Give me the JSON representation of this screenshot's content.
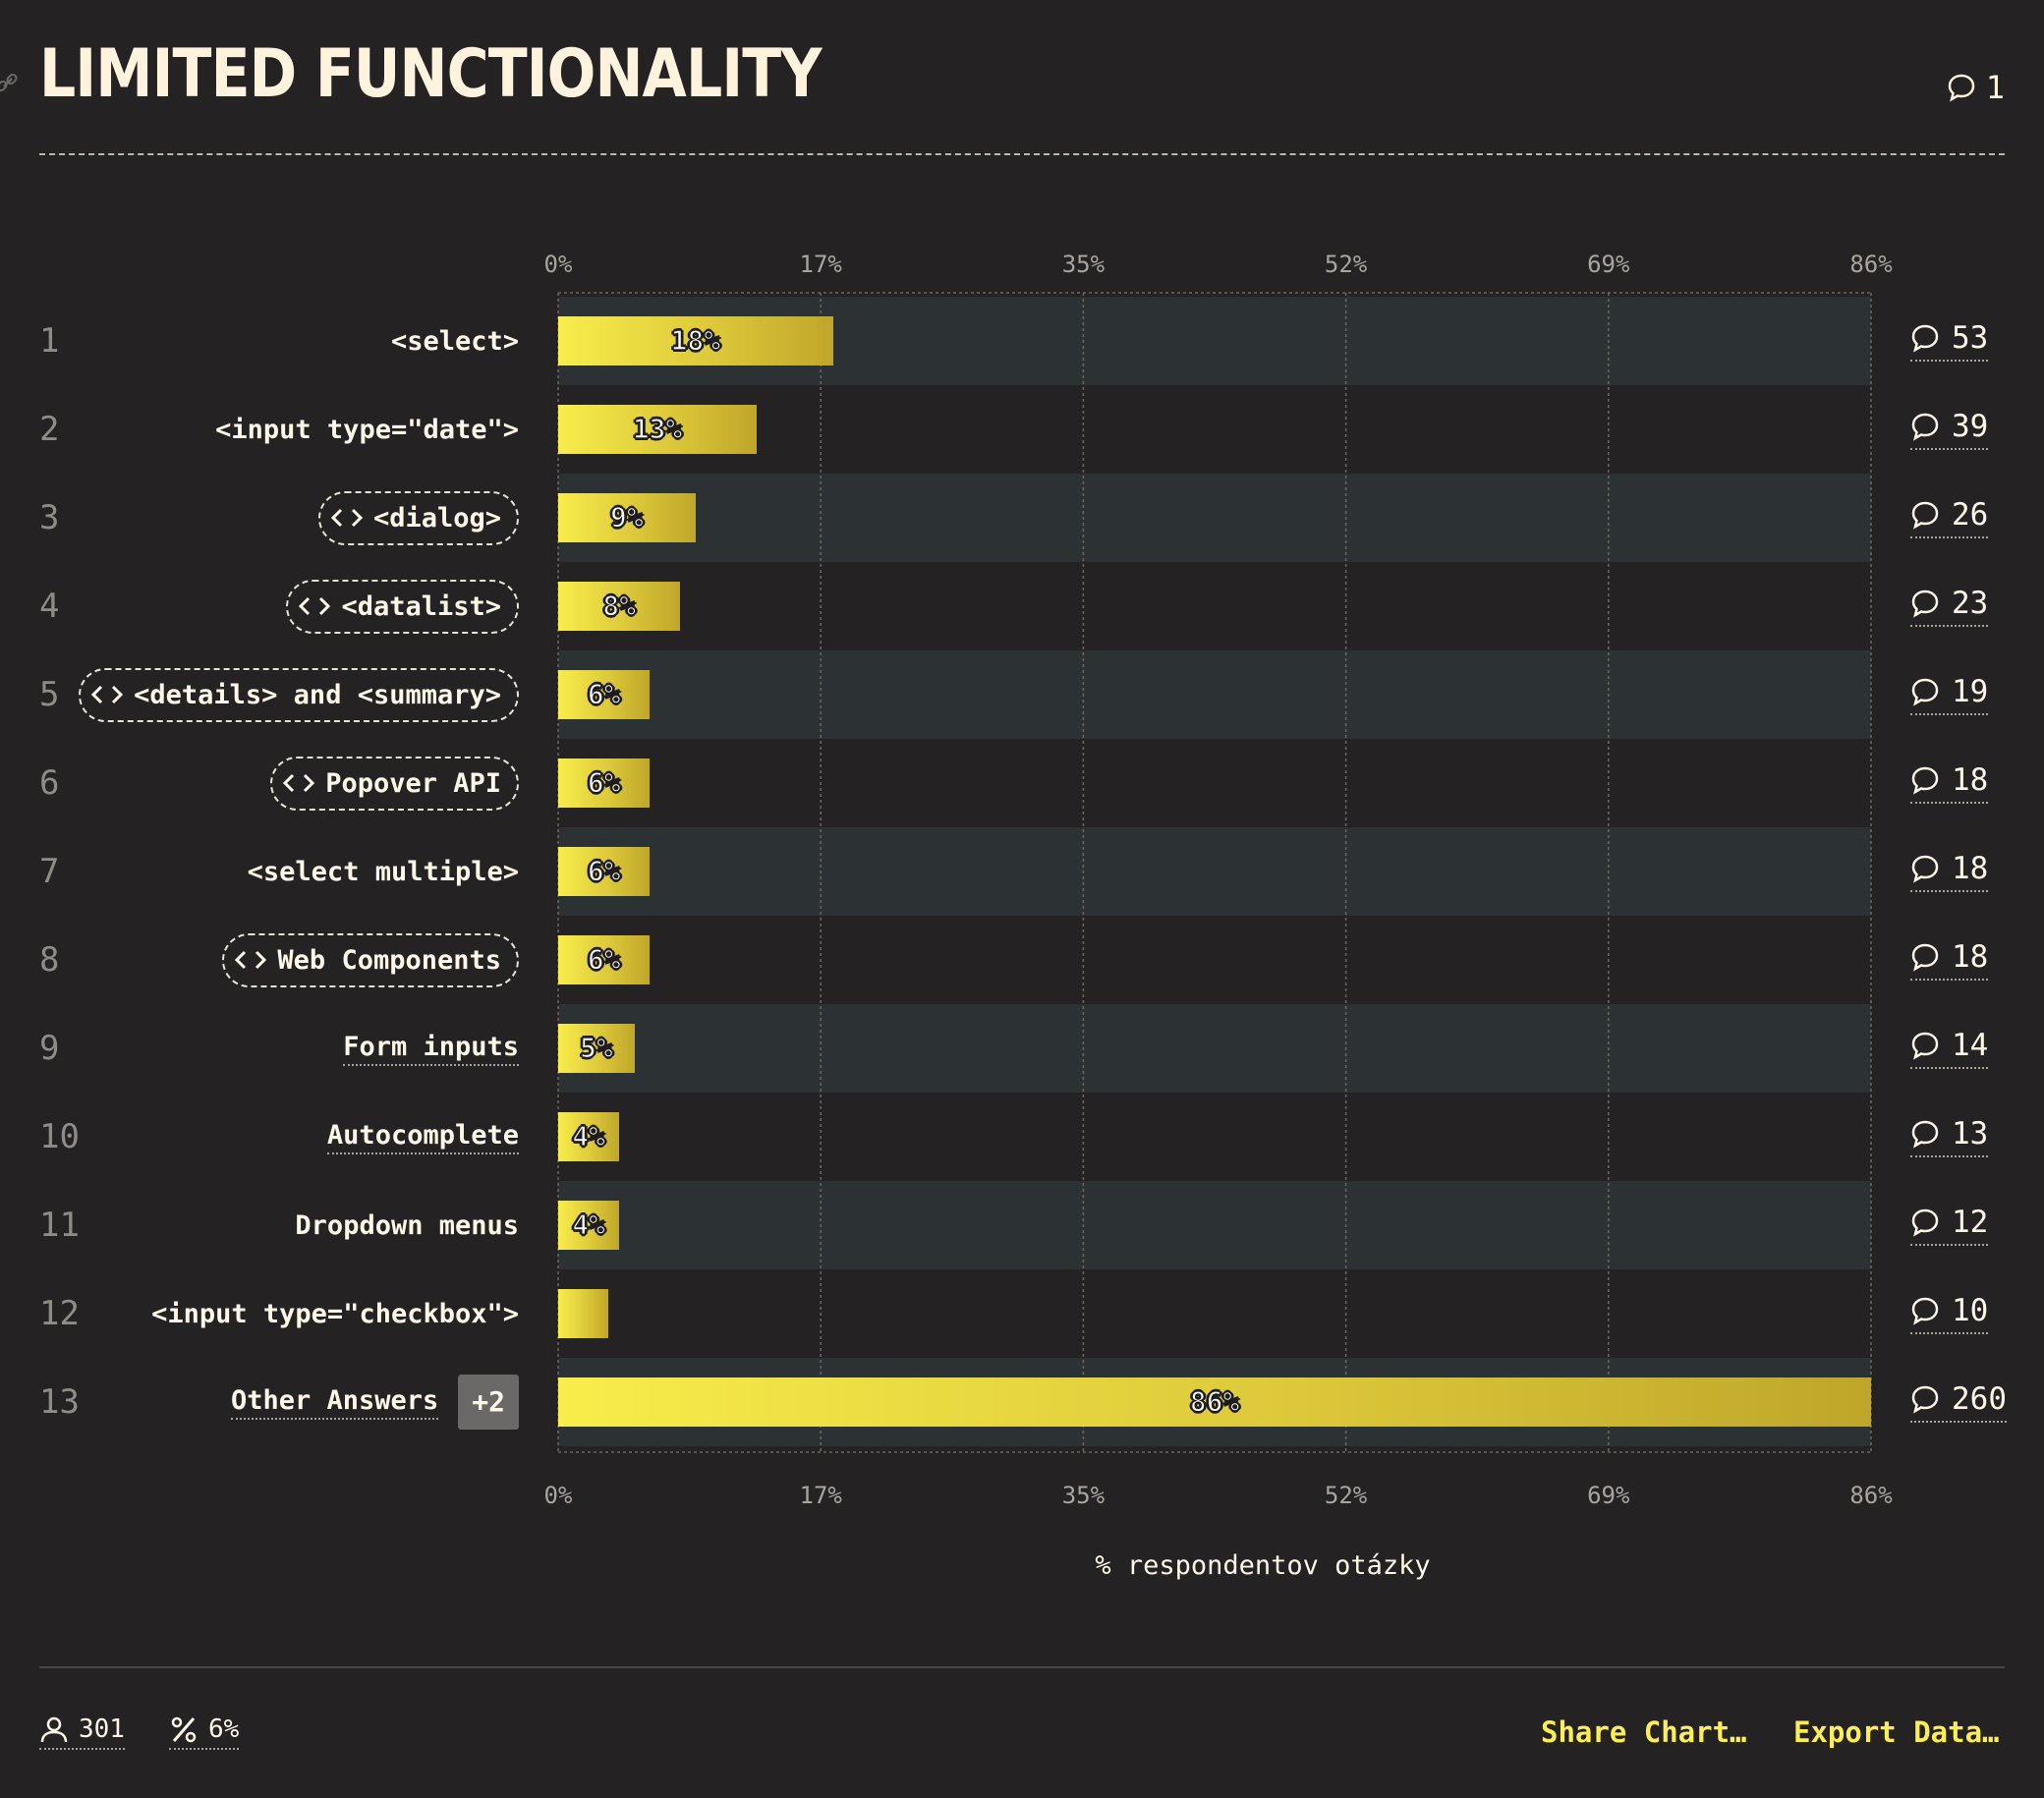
{
  "header": {
    "title": "LIMITED FUNCTIONALITY",
    "comment_count": "1"
  },
  "chart_data": {
    "type": "bar",
    "orientation": "horizontal",
    "title": "LIMITED FUNCTIONALITY",
    "xlabel": "% respondentov otázky",
    "xlim": [
      0,
      86
    ],
    "ticks": [
      "0%",
      "17%",
      "35%",
      "52%",
      "69%",
      "86%"
    ],
    "tick_values": [
      0,
      17.2,
      34.4,
      51.6,
      68.8,
      86
    ],
    "grid": true,
    "rows": [
      {
        "rank": "1",
        "label": "<select>",
        "style": "plain",
        "value": 18,
        "value_label": "18%",
        "comments": "53"
      },
      {
        "rank": "2",
        "label": "<input type=\"date\">",
        "style": "plain",
        "value": 13,
        "value_label": "13%",
        "comments": "39"
      },
      {
        "rank": "3",
        "label": "<dialog>",
        "style": "pill",
        "value": 9,
        "value_label": "9%",
        "comments": "26"
      },
      {
        "rank": "4",
        "label": "<datalist>",
        "style": "pill",
        "value": 8,
        "value_label": "8%",
        "comments": "23"
      },
      {
        "rank": "5",
        "label": "<details> and <summary>",
        "style": "pill",
        "value": 6,
        "value_label": "6%",
        "comments": "19"
      },
      {
        "rank": "6",
        "label": "Popover API",
        "style": "pill",
        "value": 6,
        "value_label": "6%",
        "comments": "18"
      },
      {
        "rank": "7",
        "label": "<select multiple>",
        "style": "plain",
        "value": 6,
        "value_label": "6%",
        "comments": "18"
      },
      {
        "rank": "8",
        "label": "Web Components",
        "style": "pill",
        "value": 6,
        "value_label": "6%",
        "comments": "18"
      },
      {
        "rank": "9",
        "label": "Form inputs",
        "style": "underline",
        "value": 5,
        "value_label": "5%",
        "comments": "14"
      },
      {
        "rank": "10",
        "label": "Autocomplete",
        "style": "underline",
        "value": 4,
        "value_label": "4%",
        "comments": "13"
      },
      {
        "rank": "11",
        "label": "Dropdown menus",
        "style": "plain",
        "value": 4,
        "value_label": "4%",
        "comments": "12"
      },
      {
        "rank": "12",
        "label": "<input type=\"checkbox\">",
        "style": "plain",
        "value": 3.3,
        "value_label": "",
        "comments": "10"
      },
      {
        "rank": "13",
        "label": "Other Answers",
        "style": "underline",
        "badge": "+2",
        "value": 86,
        "value_label": "86%",
        "comments": "260"
      }
    ]
  },
  "footer": {
    "respondents": "301",
    "percent": "6%",
    "share_label": "Share Chart…",
    "export_label": "Export Data…"
  },
  "colors": {
    "background": "#252223",
    "band": "#2c3134",
    "bar_start": "#f8ed4b",
    "bar_end": "#bfa62a",
    "accent_link": "#fdee55"
  },
  "icons": {
    "link": "link-icon",
    "comment": "comment-bubble-icon",
    "code": "code-brackets-icon",
    "user": "user-icon",
    "percent": "percent-icon"
  }
}
